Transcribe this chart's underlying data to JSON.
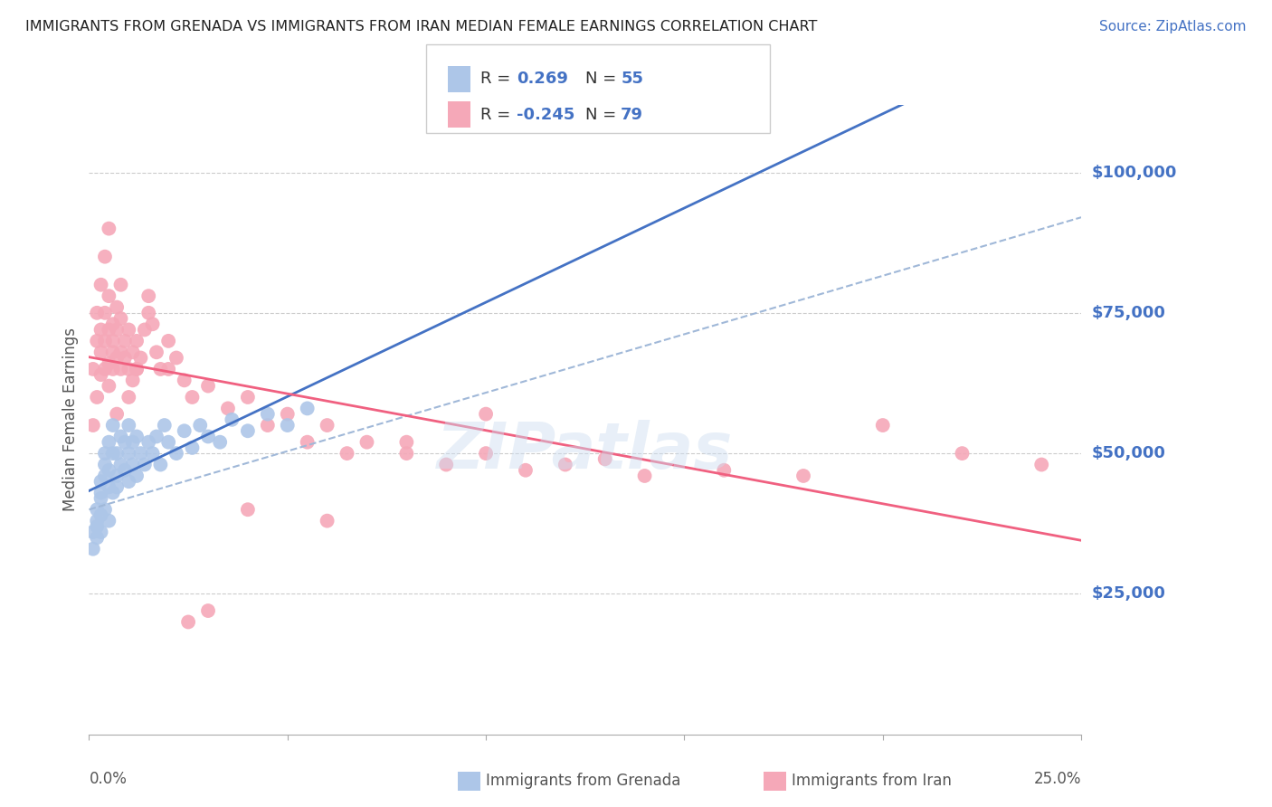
{
  "title": "IMMIGRANTS FROM GRENADA VS IMMIGRANTS FROM IRAN MEDIAN FEMALE EARNINGS CORRELATION CHART",
  "source": "Source: ZipAtlas.com",
  "ylabel": "Median Female Earnings",
  "ytick_labels": [
    "$25,000",
    "$50,000",
    "$75,000",
    "$100,000"
  ],
  "ytick_values": [
    25000,
    50000,
    75000,
    100000
  ],
  "ymin": 0,
  "ymax": 112000,
  "xmin": 0.0,
  "xmax": 0.25,
  "grenada_R": 0.269,
  "grenada_N": 55,
  "iran_R": -0.245,
  "iran_N": 79,
  "grenada_color": "#adc6e8",
  "iran_color": "#f5a8b8",
  "grenada_line_color": "#4472c4",
  "iran_line_color": "#f06080",
  "dash_line_color": "#a0b8d8",
  "title_color": "#222222",
  "source_color": "#4472c4",
  "axis_label_color": "#4472c4",
  "grenada_x": [
    0.001,
    0.001,
    0.002,
    0.002,
    0.002,
    0.002,
    0.003,
    0.003,
    0.003,
    0.003,
    0.003,
    0.004,
    0.004,
    0.004,
    0.004,
    0.005,
    0.005,
    0.005,
    0.005,
    0.006,
    0.006,
    0.006,
    0.007,
    0.007,
    0.007,
    0.008,
    0.008,
    0.009,
    0.009,
    0.01,
    0.01,
    0.01,
    0.011,
    0.011,
    0.012,
    0.012,
    0.013,
    0.014,
    0.015,
    0.016,
    0.017,
    0.018,
    0.019,
    0.02,
    0.022,
    0.024,
    0.026,
    0.028,
    0.03,
    0.033,
    0.036,
    0.04,
    0.045,
    0.05,
    0.055
  ],
  "grenada_y": [
    33000,
    36000,
    38000,
    35000,
    40000,
    37000,
    42000,
    39000,
    45000,
    36000,
    43000,
    50000,
    46000,
    40000,
    48000,
    44000,
    52000,
    38000,
    47000,
    50000,
    43000,
    55000,
    46000,
    50000,
    44000,
    48000,
    53000,
    47000,
    52000,
    45000,
    50000,
    55000,
    48000,
    52000,
    46000,
    53000,
    50000,
    48000,
    52000,
    50000,
    53000,
    48000,
    55000,
    52000,
    50000,
    54000,
    51000,
    55000,
    53000,
    52000,
    56000,
    54000,
    57000,
    55000,
    58000
  ],
  "iran_x": [
    0.001,
    0.001,
    0.002,
    0.002,
    0.002,
    0.003,
    0.003,
    0.003,
    0.003,
    0.004,
    0.004,
    0.004,
    0.005,
    0.005,
    0.005,
    0.005,
    0.006,
    0.006,
    0.006,
    0.006,
    0.007,
    0.007,
    0.007,
    0.008,
    0.008,
    0.008,
    0.009,
    0.009,
    0.01,
    0.01,
    0.011,
    0.011,
    0.012,
    0.012,
    0.013,
    0.014,
    0.015,
    0.016,
    0.017,
    0.018,
    0.02,
    0.022,
    0.024,
    0.026,
    0.03,
    0.035,
    0.04,
    0.045,
    0.05,
    0.055,
    0.06,
    0.065,
    0.07,
    0.08,
    0.09,
    0.1,
    0.11,
    0.12,
    0.14,
    0.16,
    0.004,
    0.005,
    0.007,
    0.008,
    0.01,
    0.012,
    0.015,
    0.02,
    0.025,
    0.03,
    0.04,
    0.06,
    0.08,
    0.1,
    0.13,
    0.18,
    0.2,
    0.22,
    0.24
  ],
  "iran_y": [
    55000,
    65000,
    70000,
    60000,
    75000,
    68000,
    72000,
    64000,
    80000,
    70000,
    65000,
    75000,
    72000,
    66000,
    78000,
    62000,
    70000,
    65000,
    73000,
    68000,
    72000,
    67000,
    76000,
    68000,
    74000,
    65000,
    70000,
    67000,
    72000,
    65000,
    68000,
    63000,
    70000,
    65000,
    67000,
    72000,
    75000,
    73000,
    68000,
    65000,
    70000,
    67000,
    63000,
    60000,
    62000,
    58000,
    60000,
    55000,
    57000,
    52000,
    55000,
    50000,
    52000,
    50000,
    48000,
    50000,
    47000,
    48000,
    46000,
    47000,
    85000,
    90000,
    57000,
    80000,
    60000,
    65000,
    78000,
    65000,
    20000,
    22000,
    40000,
    38000,
    52000,
    57000,
    49000,
    46000,
    55000,
    50000,
    48000
  ]
}
